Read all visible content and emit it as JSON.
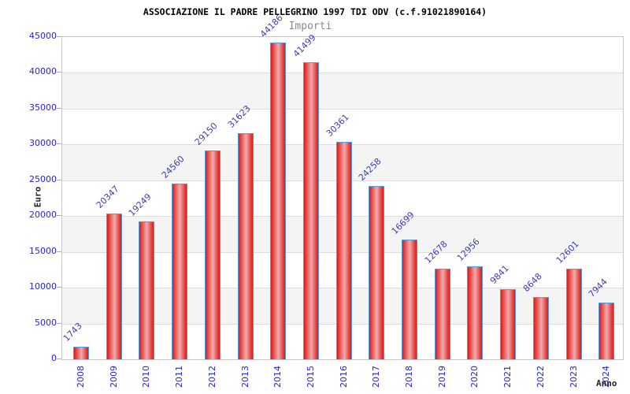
{
  "title": "ASSOCIAZIONE IL PADRE PELLEGRINO 1997 TDI ODV (c.f.91021890164)",
  "legend": "Importi",
  "chart_data": {
    "type": "bar",
    "title": "ASSOCIAZIONE IL PADRE PELLEGRINO 1997 TDI ODV (c.f.91021890164)",
    "legend_entries": [
      "Importi"
    ],
    "legend_position": "top-center",
    "categories": [
      "2008",
      "2009",
      "2010",
      "2011",
      "2012",
      "2013",
      "2014",
      "2015",
      "2016",
      "2017",
      "2018",
      "2019",
      "2020",
      "2021",
      "2022",
      "2023",
      "2024"
    ],
    "values": [
      1743,
      20347,
      19249,
      24560,
      29150,
      31623,
      44186,
      41499,
      30361,
      24258,
      16699,
      12678,
      12956,
      9841,
      8648,
      12601,
      7944
    ],
    "xlabel": "Anno",
    "ylabel": "Euro",
    "ylim": [
      0,
      45000
    ],
    "ytick_step": 5000,
    "ytick_labels": [
      "0",
      "5000",
      "10000",
      "15000",
      "20000",
      "25000",
      "30000",
      "35000",
      "40000",
      "45000"
    ],
    "grid": true,
    "bands_alternating": true,
    "bar_value_labels_rotated_45": true,
    "xtick_labels_rotated_90": true
  },
  "colors": {
    "bar_edge_red": "#d12020",
    "bar_highlight": "#f0abab",
    "bar_border_blue": "#4f9fe0",
    "axis_tick_text": "#2424d6",
    "bar_value_text": "#3e3eb0",
    "title_text": "#000000",
    "legend_text": "#8a8a8a",
    "axis_label_text": "#222222",
    "band_gray": "#f4f4f4",
    "grid_line": "#dcdcdc",
    "plot_border": "#c9c9c9",
    "background": "#ffffff"
  }
}
